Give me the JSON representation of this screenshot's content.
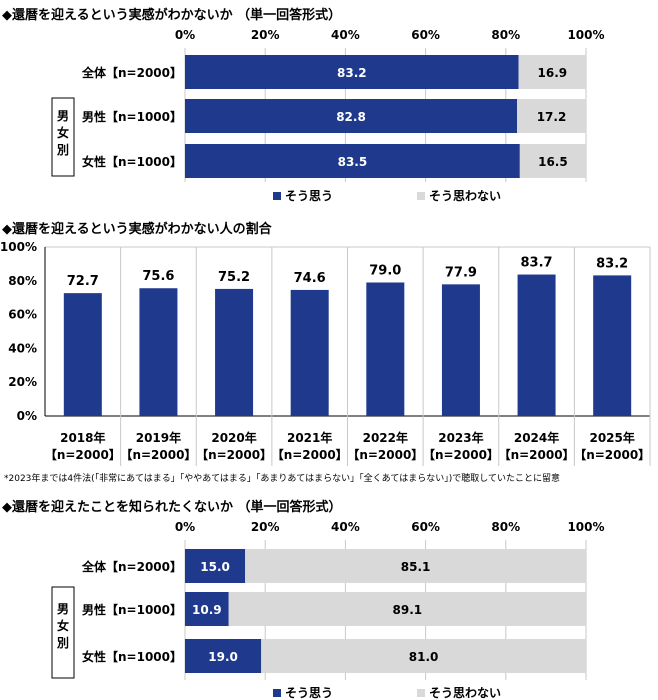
{
  "colors": {
    "yes": "#1f3a8c",
    "no": "#d9d9d9",
    "grid": "#c8c8c8"
  },
  "section_a": {
    "title": "◆還暦を迎えるという実感がわかないか （単一回答形式）",
    "group_label": "男女別",
    "rows": [
      {
        "label": "全体【n=2000】",
        "yes": 83.2,
        "no": 16.9
      },
      {
        "label": "男性【n=1000】",
        "yes": 82.8,
        "no": 17.2
      },
      {
        "label": "女性【n=1000】",
        "yes": 83.5,
        "no": 16.5
      }
    ],
    "legend": {
      "yes": "そう思う",
      "no": "そう思わない"
    }
  },
  "section_b": {
    "title": "◆還暦を迎えるという実感がわかない人の割合",
    "note": "*2023年までは4件法(「非常にあてはまる」「ややあてはまる」「あまりあてはまらない」「全くあてはまらない」)で聴取していたことに留意"
  },
  "section_c": {
    "title": "◆還暦を迎えたことを知られたくないか （単一回答形式）",
    "group_label": "男女別",
    "rows": [
      {
        "label": "全体【n=2000】",
        "yes": 15.0,
        "no": 85.1
      },
      {
        "label": "男性【n=1000】",
        "yes": 10.9,
        "no": 89.1
      },
      {
        "label": "女性【n=1000】",
        "yes": 19.0,
        "no": 81.0
      }
    ],
    "legend": {
      "yes": "そう思う",
      "no": "そう思わない"
    }
  },
  "chart_data": [
    {
      "type": "bar",
      "orientation": "horizontal-stacked",
      "title": "◆還暦を迎えるという実感がわかないか （単一回答形式）",
      "categories": [
        "全体【n=2000】",
        "男性【n=1000】",
        "女性【n=1000】"
      ],
      "series": [
        {
          "name": "そう思う",
          "values": [
            83.2,
            82.8,
            83.5
          ]
        },
        {
          "name": "そう思わない",
          "values": [
            16.9,
            17.2,
            16.5
          ]
        }
      ],
      "xlim": [
        0,
        100
      ],
      "ticks": [
        "0%",
        "20%",
        "40%",
        "60%",
        "80%",
        "100%"
      ],
      "legend": "bottom"
    },
    {
      "type": "bar",
      "title": "◆還暦を迎えるという実感がわかない人の割合",
      "categories": [
        "2018年",
        "2019年",
        "2020年",
        "2021年",
        "2022年",
        "2023年",
        "2024年",
        "2025年"
      ],
      "sublabels": [
        "【n=2000】",
        "【n=2000】",
        "【n=2000】",
        "【n=2000】",
        "【n=2000】",
        "【n=2000】",
        "【n=2000】",
        "【n=2000】"
      ],
      "values": [
        72.7,
        75.6,
        75.2,
        74.6,
        79.0,
        77.9,
        83.7,
        83.2
      ],
      "value_labels": [
        "72.7",
        "75.6",
        "75.2",
        "74.6",
        "79.0",
        "77.9",
        "83.7",
        "83.2"
      ],
      "ylim": [
        0,
        100
      ],
      "ticks": [
        "0%",
        "20%",
        "40%",
        "60%",
        "80%",
        "100%"
      ],
      "grid": "vertical-separators"
    },
    {
      "type": "bar",
      "orientation": "horizontal-stacked",
      "title": "◆還暦を迎えたことを知られたくないか （単一回答形式）",
      "categories": [
        "全体【n=2000】",
        "男性【n=1000】",
        "女性【n=1000】"
      ],
      "series": [
        {
          "name": "そう思う",
          "values": [
            15.0,
            10.9,
            19.0
          ]
        },
        {
          "name": "そう思わない",
          "values": [
            85.1,
            89.1,
            81.0
          ]
        }
      ],
      "xlim": [
        0,
        100
      ],
      "ticks": [
        "0%",
        "20%",
        "40%",
        "60%",
        "80%",
        "100%"
      ],
      "legend": "bottom"
    }
  ]
}
